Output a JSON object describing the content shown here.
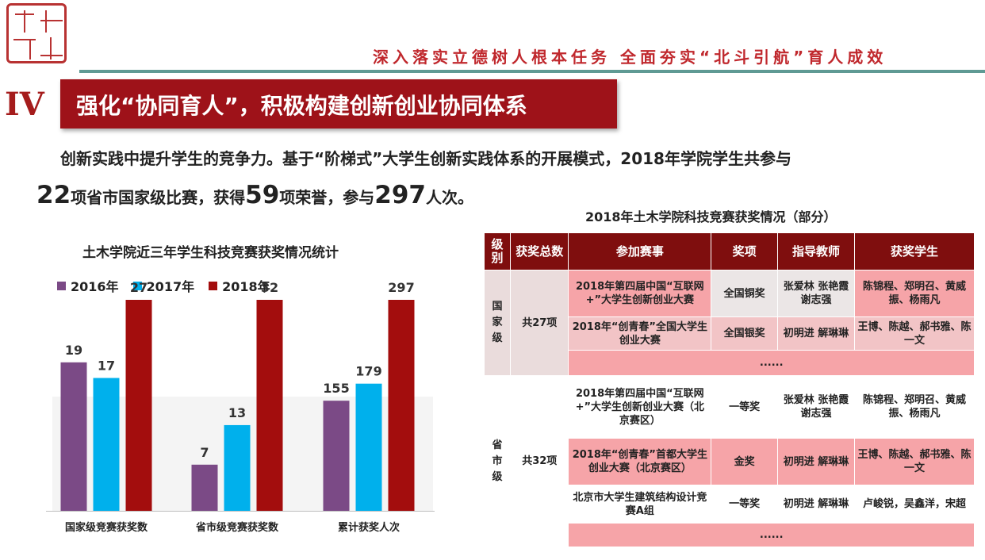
{
  "header": {
    "slogan": "深入落实立德树人根本任务    全面夯实“北斗引航”育人成效",
    "section_numeral": "IV",
    "section_title": "强化“协同育人”，积极构建创新创业协同体系"
  },
  "intro": {
    "line1": "创新实践中提升学生的竞争力。基于“阶梯式”大学生创新实践体系的开展模式，2018年学院学生共参与",
    "n_competitions": "22",
    "t_competitions": "项省市国家级比赛，获得",
    "n_honors": "59",
    "t_honors": "项荣誉，参与",
    "n_people": "297",
    "t_people": "人次。"
  },
  "chart_data": {
    "type": "bar",
    "title": "土木学院近三年学生科技竞赛获奖情况统计",
    "categories": [
      "国家级竞赛获奖数",
      "省市级竞赛获奖数",
      "累计获奖人次"
    ],
    "series": [
      {
        "name": "2016年",
        "color": "#7b4a86",
        "values": [
          19,
          7,
          155
        ]
      },
      {
        "name": "2017年",
        "color": "#00b0ec",
        "values": [
          17,
          13,
          179
        ]
      },
      {
        "name": "2018年",
        "color": "#a30d0d",
        "values": [
          27,
          32,
          297
        ]
      }
    ],
    "legend_position": "top-left",
    "axes_note": "each category group is scaled independently; no value axis shown",
    "grid": false
  },
  "table": {
    "title": "2018年土木学院科技竞赛获奖情况（部分）",
    "headers": {
      "level": "级别",
      "total": "获奖总数",
      "event": "参加赛事",
      "award": "奖项",
      "teacher": "指导教师",
      "students": "获奖学生"
    },
    "groups": [
      {
        "level": "国家级",
        "total": "共27项",
        "rows": [
          {
            "event": "2018年第四届中国“互联网+”大学生创新创业大赛",
            "award": "全国铜奖",
            "teacher": "张爱林 张艳霞 谢志强",
            "students": "陈锦程、郑明召、黄威振、杨雨凡"
          },
          {
            "event": "2018年“创青春”全国大学生创业大赛",
            "award": "全国银奖",
            "teacher": "初明进 解琳琳",
            "students": "王博、陈越、郝书雅、陈一文"
          }
        ],
        "ellipsis": "......"
      },
      {
        "level": "省市级",
        "total": "共32项",
        "rows": [
          {
            "event": "2018年第四届中国“互联网+”大学生创新创业大赛（北京赛区）",
            "award": "一等奖",
            "teacher": "张爱林 张艳霞 谢志强",
            "students": "陈锦程、郑明召、黄威振、杨雨凡"
          },
          {
            "event": "2018年“创青春”首都大学生创业大赛（北京赛区）",
            "award": "金奖",
            "teacher": "初明进 解琳琳",
            "students": "王博、陈越、郝书雅、陈一文"
          },
          {
            "event": "北京市大学生建筑结构设计竞赛A组",
            "award": "一等奖",
            "teacher": "初明进 解琳琳",
            "students": "卢峻锐，吴鑫洋，宋超"
          }
        ],
        "ellipsis": "......"
      }
    ]
  }
}
